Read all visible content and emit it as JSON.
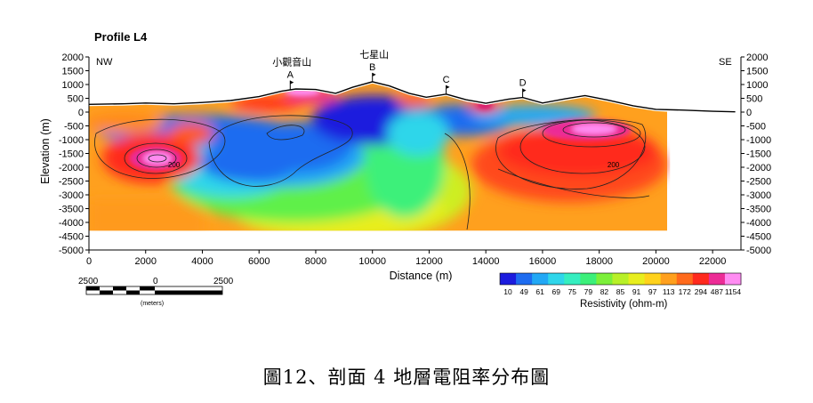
{
  "caption": "圖12、剖面 4 地層電阻率分布圖",
  "chart_data": {
    "type": "heatmap",
    "title": "Profile L4",
    "xlabel": "Distance (m)",
    "ylabel": "Elevation (m)",
    "xlim": [
      0,
      23000
    ],
    "ylim": [
      -5000,
      2000
    ],
    "x_ticks": [
      "0",
      "2000",
      "4000",
      "6000",
      "8000",
      "10000",
      "12000",
      "14000",
      "16000",
      "18000",
      "20000",
      "22000"
    ],
    "y_ticks": [
      "2000",
      "1500",
      "1000",
      "500",
      "0",
      "-500",
      "-1000",
      "-1500",
      "-2000",
      "-2500",
      "-3000",
      "-3500",
      "-4000",
      "-4500",
      "-5000"
    ],
    "left_label": "NW",
    "right_label": "SE",
    "grid": false,
    "peaks": [
      {
        "letter": "A",
        "name": "小觀音山",
        "x": 7100,
        "elev": 820
      },
      {
        "letter": "B",
        "name": "七星山",
        "x": 10000,
        "elev": 1100
      },
      {
        "letter": "C",
        "name": "",
        "x": 12600,
        "elev": 650
      },
      {
        "letter": "D",
        "name": "",
        "x": 15300,
        "elev": 530
      }
    ],
    "contour_labels": [
      {
        "text": "200",
        "x": 3000,
        "y": -2000
      },
      {
        "text": "200",
        "x": 18500,
        "y": -2000
      }
    ],
    "scale_bar": {
      "labels": [
        "2500",
        "0",
        "2500"
      ],
      "unit": "(meters)"
    },
    "colorbar": {
      "label": "Resistivity (ohm-m)",
      "values": [
        "10",
        "49",
        "61",
        "69",
        "75",
        "79",
        "82",
        "85",
        "91",
        "97",
        "113",
        "172",
        "294",
        "487",
        "1154"
      ],
      "colors": [
        "#1c1cde",
        "#1e6cf0",
        "#22a8f5",
        "#2fd6ea",
        "#35eec0",
        "#3cf07a",
        "#7cf03a",
        "#b8f028",
        "#e8ee1e",
        "#ffd21c",
        "#ffa01e",
        "#ff6a1c",
        "#ff2a1e",
        "#ec2c96",
        "#ff8cf2"
      ]
    },
    "topography": [
      [
        0,
        280
      ],
      [
        1200,
        300
      ],
      [
        2000,
        330
      ],
      [
        3000,
        300
      ],
      [
        4000,
        350
      ],
      [
        5000,
        420
      ],
      [
        6000,
        560
      ],
      [
        6800,
        760
      ],
      [
        7300,
        840
      ],
      [
        8000,
        820
      ],
      [
        8700,
        680
      ],
      [
        9300,
        900
      ],
      [
        10000,
        1100
      ],
      [
        10600,
        950
      ],
      [
        11300,
        680
      ],
      [
        11900,
        540
      ],
      [
        12600,
        650
      ],
      [
        13300,
        450
      ],
      [
        14000,
        320
      ],
      [
        14800,
        470
      ],
      [
        15300,
        530
      ],
      [
        16000,
        330
      ],
      [
        16800,
        480
      ],
      [
        17500,
        600
      ],
      [
        18300,
        440
      ],
      [
        19200,
        230
      ],
      [
        20000,
        100
      ],
      [
        21000,
        70
      ],
      [
        22000,
        30
      ],
      [
        22800,
        10
      ]
    ]
  }
}
